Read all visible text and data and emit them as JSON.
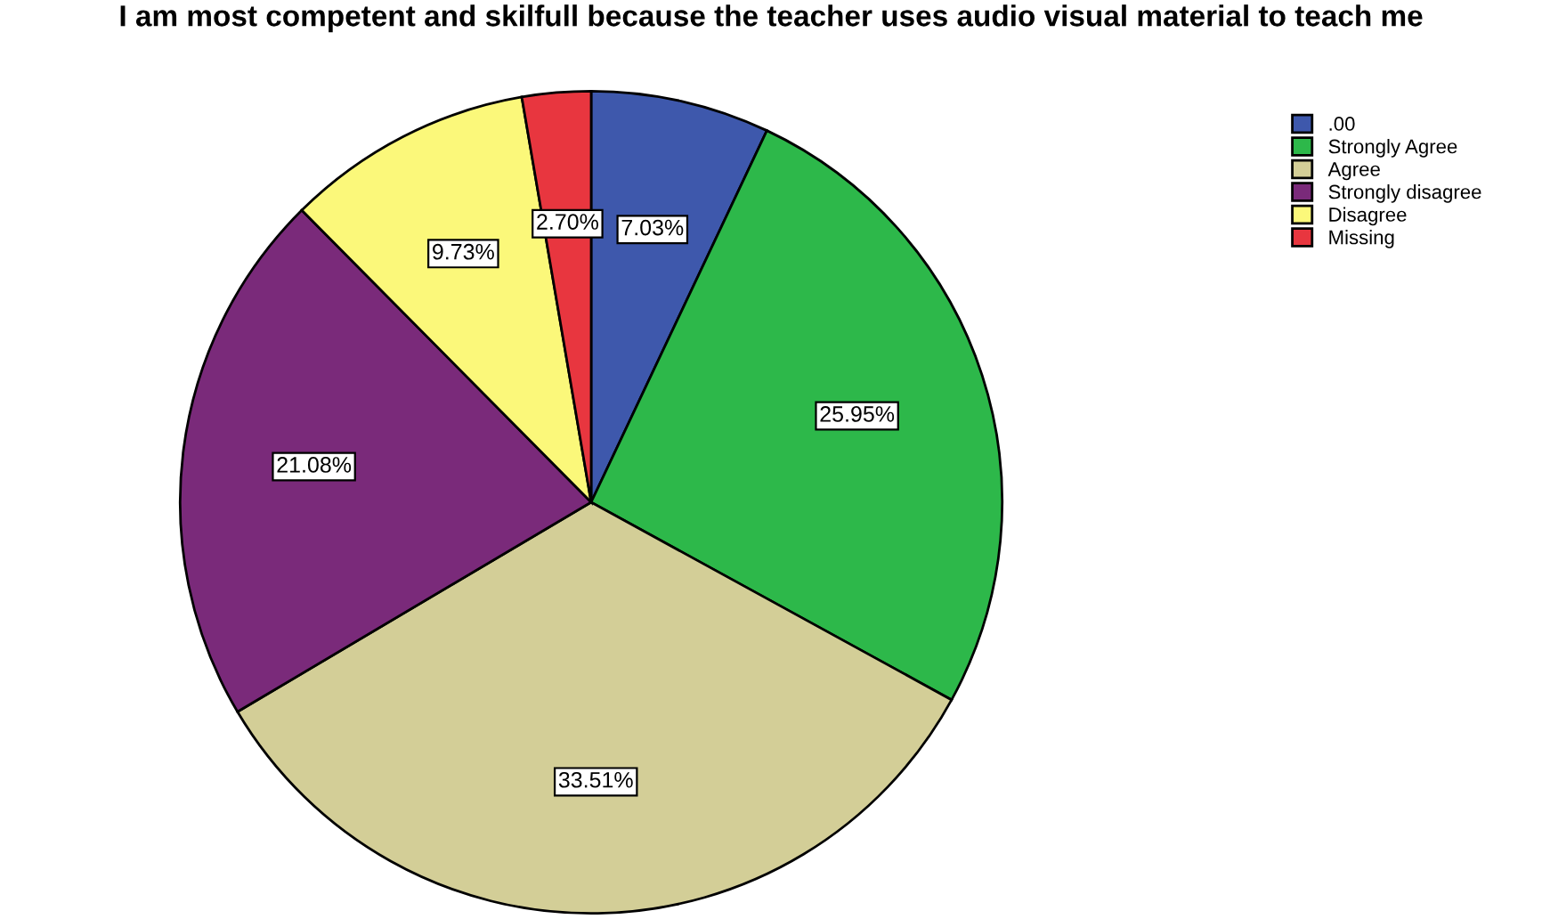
{
  "chart_data": {
    "type": "pie",
    "title": "I am most competent and skilfull because the teacher uses audio visual material to teach me",
    "categories": [
      ".00",
      "Strongly Agree",
      "Agree",
      "Strongly disagree",
      "Disagree",
      "Missing"
    ],
    "values": [
      7.03,
      25.95,
      33.51,
      21.08,
      9.73,
      2.7
    ],
    "colors": [
      "#3e58ac",
      "#2db84a",
      "#d3ce97",
      "#7a2a7a",
      "#fbf87a",
      "#e8363f"
    ],
    "value_labels": [
      "7.03%",
      "25.95%",
      "33.51%",
      "21.08%",
      "9.73%",
      "2.70%"
    ],
    "legend": "top right"
  }
}
